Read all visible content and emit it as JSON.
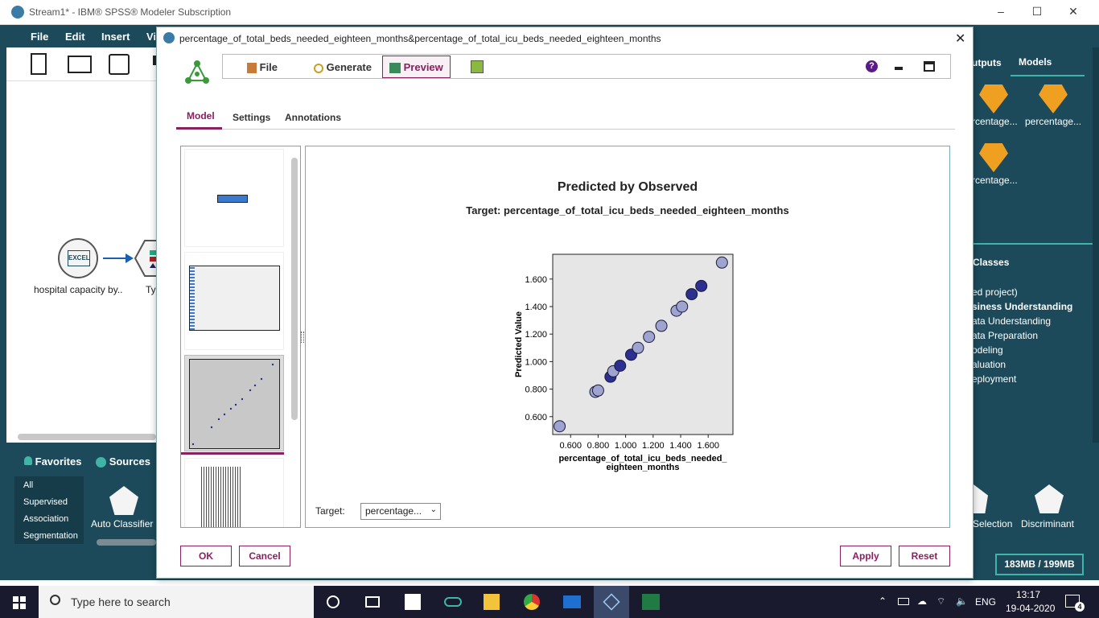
{
  "window": {
    "title": "Stream1* - IBM® SPSS® Modeler Subscription",
    "menu": [
      "File",
      "Edit",
      "Insert",
      "Vi"
    ],
    "controls": [
      "–",
      "☐",
      "✕"
    ]
  },
  "canvas": {
    "node1_label": "hospital capacity by..",
    "node2_label": "Ty"
  },
  "palette": {
    "tabs": [
      "Favorites",
      "Sources"
    ],
    "list": [
      "All",
      "Supervised",
      "Association",
      "Segmentation"
    ],
    "node_label": "Auto Classifier"
  },
  "right_panel": {
    "tabs": [
      "utputs",
      "Models"
    ],
    "models": [
      "rcentage...",
      "percentage...",
      "rcentage..."
    ],
    "classes_header": "Classes",
    "classes": [
      "ed project)",
      "siness Understanding",
      "ata Understanding",
      "ata Preparation",
      "odeling",
      "aluation",
      "eployment"
    ],
    "lower_nodes": [
      "Selection",
      "Discriminant"
    ],
    "memory": "183MB / 199MB"
  },
  "dialog": {
    "title": "percentage_of_total_beds_needed_eighteen_months&percentage_of_total_icu_beds_needed_eighteen_months",
    "toolbar": {
      "file": "File",
      "generate": "Generate",
      "preview": "Preview"
    },
    "tabs": [
      "Model",
      "Settings",
      "Annotations"
    ],
    "buttons": {
      "ok": "OK",
      "cancel": "Cancel",
      "apply": "Apply",
      "reset": "Reset"
    },
    "target_label": "Target:",
    "target_value": "percentage..."
  },
  "chart_data": {
    "type": "scatter",
    "title": "Predicted by Observed",
    "subtitle": "Target: percentage_of_total_icu_beds_needed_eighteen_months",
    "xlabel": "percentage_of_total_icu_beds_needed_eighteen_months",
    "ylabel": "Predicted Value",
    "xticks": [
      "0.600",
      "0.800",
      "1.000",
      "1.200",
      "1.400",
      "1.600"
    ],
    "yticks": [
      "0.600",
      "0.800",
      "1.000",
      "1.200",
      "1.400",
      "1.600"
    ],
    "xlim": [
      0.47,
      1.78
    ],
    "ylim": [
      0.47,
      1.78
    ],
    "points": [
      {
        "x": 0.52,
        "y": 0.53,
        "dark": false
      },
      {
        "x": 0.78,
        "y": 0.78,
        "dark": false
      },
      {
        "x": 0.8,
        "y": 0.79,
        "dark": false
      },
      {
        "x": 0.89,
        "y": 0.89,
        "dark": true
      },
      {
        "x": 0.91,
        "y": 0.93,
        "dark": false
      },
      {
        "x": 0.96,
        "y": 0.97,
        "dark": true
      },
      {
        "x": 1.04,
        "y": 1.05,
        "dark": true
      },
      {
        "x": 1.09,
        "y": 1.1,
        "dark": false
      },
      {
        "x": 1.17,
        "y": 1.18,
        "dark": false
      },
      {
        "x": 1.26,
        "y": 1.26,
        "dark": false
      },
      {
        "x": 1.37,
        "y": 1.37,
        "dark": false
      },
      {
        "x": 1.41,
        "y": 1.4,
        "dark": false
      },
      {
        "x": 1.48,
        "y": 1.49,
        "dark": true
      },
      {
        "x": 1.55,
        "y": 1.55,
        "dark": true
      },
      {
        "x": 1.7,
        "y": 1.72,
        "dark": false
      }
    ],
    "colors": {
      "light": "#9ea3cf",
      "dark": "#2b2f8f",
      "plot_bg": "#e6e6e6"
    }
  },
  "taskbar": {
    "search_placeholder": "Type here to search",
    "time": "13:17",
    "date": "19-04-2020",
    "lang": "ENG",
    "notif_count": "4"
  }
}
